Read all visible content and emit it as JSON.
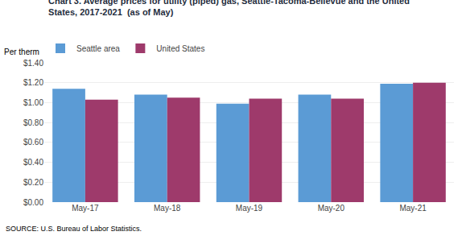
{
  "chart_data": {
    "type": "bar",
    "title": "Chart 3. Average prices for utility (piped) gas, Seattle-Tacoma-Bellevue and the United\nStates, 2017-2021  (as of May)",
    "ylabel": "Per therm",
    "source": "SOURCE: U.S. Bureau of Labor Statistics.",
    "categories": [
      "May-17",
      "May-18",
      "May-19",
      "May-20",
      "May-21"
    ],
    "series": [
      {
        "name": "Seattle area",
        "color": "#5B9BD5",
        "values": [
          1.14,
          1.08,
          0.99,
          1.08,
          1.19
        ]
      },
      {
        "name": "United States",
        "color": "#9E3A6B",
        "values": [
          1.03,
          1.05,
          1.04,
          1.04,
          1.2
        ]
      }
    ],
    "ylim": [
      0,
      1.4
    ],
    "yticks": [
      {
        "value": 0.0,
        "label": "$0.00"
      },
      {
        "value": 0.2,
        "label": "$0.20"
      },
      {
        "value": 0.4,
        "label": "$0.40"
      },
      {
        "value": 0.6,
        "label": "$0.60"
      },
      {
        "value": 0.8,
        "label": "$0.80"
      },
      {
        "value": 1.0,
        "label": "$1.00"
      },
      {
        "value": 1.2,
        "label": "$1.20"
      },
      {
        "value": 1.4,
        "label": "$1.40"
      }
    ],
    "grid": true,
    "legend": "top"
  }
}
